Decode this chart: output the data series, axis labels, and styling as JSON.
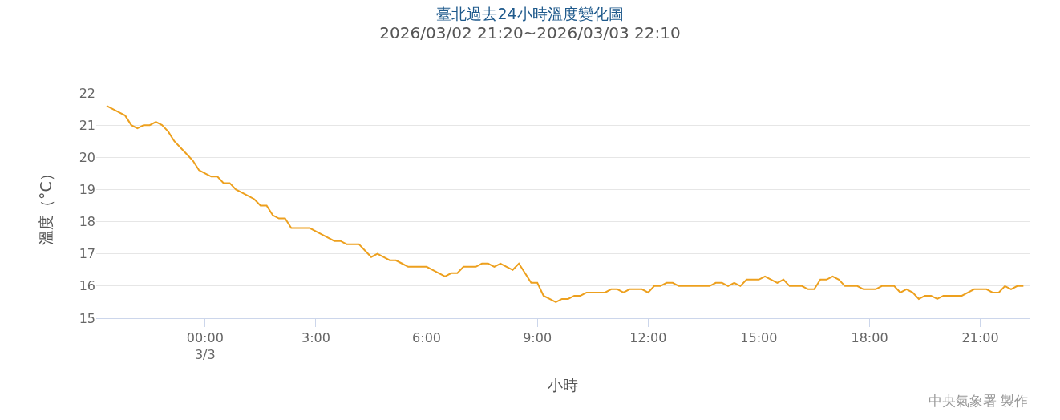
{
  "chart_data": {
    "type": "line",
    "title": "臺北過去24小時溫度變化圖",
    "subtitle": "2026/03/02 21:20~2026/03/03 22:10",
    "xlabel": "小時",
    "ylabel": "溫度（°C）",
    "annotations": [
      "中央氣象署 製作"
    ],
    "x": [
      "2026-03-02T21:20",
      "2026-03-02T21:30",
      "2026-03-02T21:40",
      "2026-03-02T21:50",
      "2026-03-02T22:00",
      "2026-03-02T22:10",
      "2026-03-02T22:20",
      "2026-03-02T22:30",
      "2026-03-02T22:40",
      "2026-03-02T22:50",
      "2026-03-02T23:00",
      "2026-03-02T23:10",
      "2026-03-02T23:20",
      "2026-03-02T23:30",
      "2026-03-02T23:40",
      "2026-03-02T23:50",
      "2026-03-03T00:00",
      "2026-03-03T00:10",
      "2026-03-03T00:20",
      "2026-03-03T00:30",
      "2026-03-03T00:40",
      "2026-03-03T00:50",
      "2026-03-03T01:00",
      "2026-03-03T01:10",
      "2026-03-03T01:20",
      "2026-03-03T01:30",
      "2026-03-03T01:40",
      "2026-03-03T01:50",
      "2026-03-03T02:00",
      "2026-03-03T02:10",
      "2026-03-03T02:20",
      "2026-03-03T02:30",
      "2026-03-03T02:40",
      "2026-03-03T02:50",
      "2026-03-03T03:00",
      "2026-03-03T03:10",
      "2026-03-03T03:20",
      "2026-03-03T03:30",
      "2026-03-03T03:40",
      "2026-03-03T03:50",
      "2026-03-03T04:00",
      "2026-03-03T04:10",
      "2026-03-03T04:20",
      "2026-03-03T04:30",
      "2026-03-03T04:40",
      "2026-03-03T04:50",
      "2026-03-03T05:00",
      "2026-03-03T05:10",
      "2026-03-03T05:20",
      "2026-03-03T05:30",
      "2026-03-03T05:40",
      "2026-03-03T05:50",
      "2026-03-03T06:00",
      "2026-03-03T06:10",
      "2026-03-03T06:20",
      "2026-03-03T06:30",
      "2026-03-03T06:40",
      "2026-03-03T06:50",
      "2026-03-03T07:00",
      "2026-03-03T07:10",
      "2026-03-03T07:20",
      "2026-03-03T07:30",
      "2026-03-03T07:40",
      "2026-03-03T07:50",
      "2026-03-03T08:00",
      "2026-03-03T08:10",
      "2026-03-03T08:20",
      "2026-03-03T08:30",
      "2026-03-03T08:40",
      "2026-03-03T08:50",
      "2026-03-03T09:00",
      "2026-03-03T09:10",
      "2026-03-03T09:20",
      "2026-03-03T09:30",
      "2026-03-03T09:40",
      "2026-03-03T09:50",
      "2026-03-03T10:00",
      "2026-03-03T10:10",
      "2026-03-03T10:20",
      "2026-03-03T10:30",
      "2026-03-03T10:40",
      "2026-03-03T10:50",
      "2026-03-03T11:00",
      "2026-03-03T11:10",
      "2026-03-03T11:20",
      "2026-03-03T11:30",
      "2026-03-03T11:40",
      "2026-03-03T11:50",
      "2026-03-03T12:00",
      "2026-03-03T12:10",
      "2026-03-03T12:20",
      "2026-03-03T12:30",
      "2026-03-03T12:40",
      "2026-03-03T12:50",
      "2026-03-03T13:00",
      "2026-03-03T13:10",
      "2026-03-03T13:20",
      "2026-03-03T13:30",
      "2026-03-03T13:40",
      "2026-03-03T13:50",
      "2026-03-03T14:00",
      "2026-03-03T14:10",
      "2026-03-03T14:20",
      "2026-03-03T14:30",
      "2026-03-03T14:40",
      "2026-03-03T14:50",
      "2026-03-03T15:00",
      "2026-03-03T15:10",
      "2026-03-03T15:20",
      "2026-03-03T15:30",
      "2026-03-03T15:40",
      "2026-03-03T15:50",
      "2026-03-03T16:00",
      "2026-03-03T16:10",
      "2026-03-03T16:20",
      "2026-03-03T16:30",
      "2026-03-03T16:40",
      "2026-03-03T16:50",
      "2026-03-03T17:00",
      "2026-03-03T17:10",
      "2026-03-03T17:20",
      "2026-03-03T17:30",
      "2026-03-03T17:40",
      "2026-03-03T17:50",
      "2026-03-03T18:00",
      "2026-03-03T18:10",
      "2026-03-03T18:20",
      "2026-03-03T18:30",
      "2026-03-03T18:40",
      "2026-03-03T18:50",
      "2026-03-03T19:00",
      "2026-03-03T19:10",
      "2026-03-03T19:20",
      "2026-03-03T19:30",
      "2026-03-03T19:40",
      "2026-03-03T19:50",
      "2026-03-03T20:00",
      "2026-03-03T20:10",
      "2026-03-03T20:20",
      "2026-03-03T20:30",
      "2026-03-03T20:40",
      "2026-03-03T20:50",
      "2026-03-03T21:00",
      "2026-03-03T21:10",
      "2026-03-03T21:20",
      "2026-03-03T21:30",
      "2026-03-03T21:40",
      "2026-03-03T21:50",
      "2026-03-03T22:00",
      "2026-03-03T22:10"
    ],
    "series": [
      {
        "color": "#eda01e",
        "values": [
          21.6,
          21.5,
          21.4,
          21.3,
          21.0,
          20.9,
          21.0,
          21.0,
          21.1,
          21.0,
          20.8,
          20.5,
          20.3,
          20.1,
          19.9,
          19.6,
          19.5,
          19.4,
          19.4,
          19.2,
          19.2,
          19.0,
          18.9,
          18.8,
          18.7,
          18.5,
          18.5,
          18.2,
          18.1,
          18.1,
          17.8,
          17.8,
          17.8,
          17.8,
          17.7,
          17.6,
          17.5,
          17.4,
          17.4,
          17.3,
          17.3,
          17.3,
          17.1,
          16.9,
          17.0,
          16.9,
          16.8,
          16.8,
          16.7,
          16.6,
          16.6,
          16.6,
          16.6,
          16.5,
          16.4,
          16.3,
          16.4,
          16.4,
          16.6,
          16.6,
          16.6,
          16.7,
          16.7,
          16.6,
          16.7,
          16.6,
          16.5,
          16.7,
          16.4,
          16.1,
          16.1,
          15.7,
          15.6,
          15.5,
          15.6,
          15.6,
          15.7,
          15.7,
          15.8,
          15.8,
          15.8,
          15.8,
          15.9,
          15.9,
          15.8,
          15.9,
          15.9,
          15.9,
          15.8,
          16.0,
          16.0,
          16.1,
          16.1,
          16.0,
          16.0,
          16.0,
          16.0,
          16.0,
          16.0,
          16.1,
          16.1,
          16.0,
          16.1,
          16.0,
          16.2,
          16.2,
          16.2,
          16.3,
          16.2,
          16.1,
          16.2,
          16.0,
          16.0,
          16.0,
          15.9,
          15.9,
          16.2,
          16.2,
          16.3,
          16.2,
          16.0,
          16.0,
          16.0,
          15.9,
          15.9,
          15.9,
          16.0,
          16.0,
          16.0,
          15.8,
          15.9,
          15.8,
          15.6,
          15.7,
          15.7,
          15.6,
          15.7,
          15.7,
          15.7,
          15.7,
          15.8,
          15.9,
          15.9,
          15.9,
          15.8,
          15.8,
          16.0,
          15.9,
          16.0,
          16.0
        ]
      }
    ],
    "xlim": [
      "2026-03-02T21:03",
      "2026-03-03T22:20"
    ],
    "xticks": [
      {
        "value": "2026-03-03T00:00",
        "label": "00:00\n3/3"
      },
      {
        "value": "2026-03-03T03:00",
        "label": "3:00"
      },
      {
        "value": "2026-03-03T06:00",
        "label": "6:00"
      },
      {
        "value": "2026-03-03T09:00",
        "label": "9:00"
      },
      {
        "value": "2026-03-03T12:00",
        "label": "12:00"
      },
      {
        "value": "2026-03-03T15:00",
        "label": "15:00"
      },
      {
        "value": "2026-03-03T18:00",
        "label": "18:00"
      },
      {
        "value": "2026-03-03T21:00",
        "label": "21:00"
      }
    ],
    "ylim": [
      15,
      22
    ],
    "yticks": [
      15,
      16,
      17,
      18,
      19,
      20,
      21,
      22
    ],
    "grid": "y",
    "marker": "none",
    "line_style": "solid"
  }
}
